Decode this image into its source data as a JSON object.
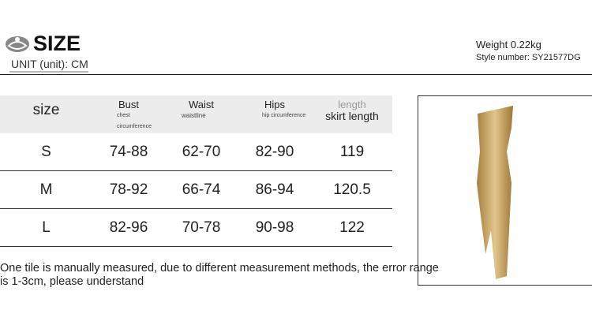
{
  "header": {
    "title": "SIZE",
    "unit": "UNIT (unit): CM",
    "weight": "Weight 0.22kg",
    "style_number": "Style number: SY21577DG"
  },
  "table": {
    "headers": [
      {
        "label": "size",
        "sub": ""
      },
      {
        "label": "Bust",
        "sub": "chest circumference"
      },
      {
        "label": "Waist",
        "sub": "waistline"
      },
      {
        "label": "Hips",
        "sub": "hip circumference"
      },
      {
        "label": "length",
        "sub": "skirt length"
      }
    ],
    "rows": [
      [
        "S",
        "74-88",
        "62-70",
        "82-90",
        "119"
      ],
      [
        "M",
        "78-92",
        "66-74",
        "86-94",
        "120.5"
      ],
      [
        "L",
        "82-96",
        "70-78",
        "90-98",
        "122"
      ]
    ]
  },
  "note": "One tile is manually measured, due to different measurement methods, the error range is 1-3cm, please understand",
  "colors": {
    "header_bg": "#ececec",
    "dress": "#c9a462"
  }
}
